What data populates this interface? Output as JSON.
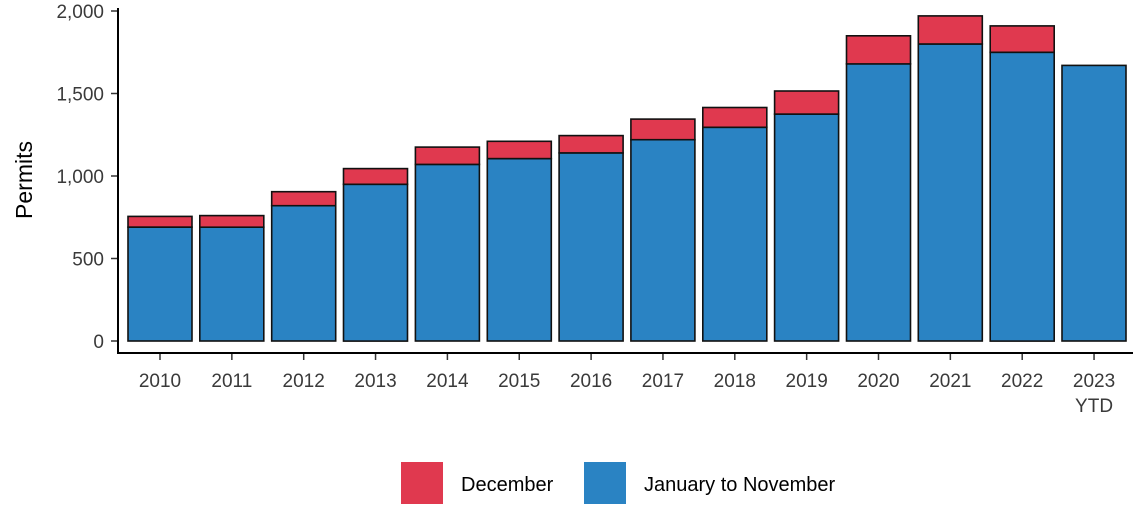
{
  "chart_data": {
    "type": "bar",
    "stacked": true,
    "categories": [
      {
        "line1": "2010",
        "line2": ""
      },
      {
        "line1": "2011",
        "line2": ""
      },
      {
        "line1": "2012",
        "line2": ""
      },
      {
        "line1": "2013",
        "line2": ""
      },
      {
        "line1": "2014",
        "line2": ""
      },
      {
        "line1": "2015",
        "line2": ""
      },
      {
        "line1": "2016",
        "line2": ""
      },
      {
        "line1": "2017",
        "line2": ""
      },
      {
        "line1": "2018",
        "line2": ""
      },
      {
        "line1": "2019",
        "line2": ""
      },
      {
        "line1": "2020",
        "line2": ""
      },
      {
        "line1": "2021",
        "line2": ""
      },
      {
        "line1": "2022",
        "line2": ""
      },
      {
        "line1": "2023",
        "line2": "YTD"
      }
    ],
    "series": [
      {
        "name": "January to November",
        "color": "#2a83c3",
        "values": [
          690,
          690,
          820,
          950,
          1070,
          1105,
          1140,
          1220,
          1295,
          1375,
          1680,
          1800,
          1750,
          1670
        ]
      },
      {
        "name": "December",
        "color": "#e0394f",
        "values": [
          65,
          70,
          85,
          95,
          105,
          105,
          105,
          125,
          120,
          140,
          170,
          170,
          160,
          0
        ]
      }
    ],
    "ylabel": "Permits",
    "xlabel": "",
    "ylim": [
      0,
      2000
    ],
    "yticks": [
      {
        "value": 0,
        "label": "0"
      },
      {
        "value": 500,
        "label": "500"
      },
      {
        "value": 1000,
        "label": "1,000"
      },
      {
        "value": 1500,
        "label": "1,500"
      },
      {
        "value": 2000,
        "label": "2,000"
      }
    ],
    "grid": false,
    "legend": {
      "position": "bottom",
      "items": [
        {
          "label": "December",
          "color": "#e0394f"
        },
        {
          "label": "January to November",
          "color": "#2a83c3"
        }
      ]
    }
  }
}
